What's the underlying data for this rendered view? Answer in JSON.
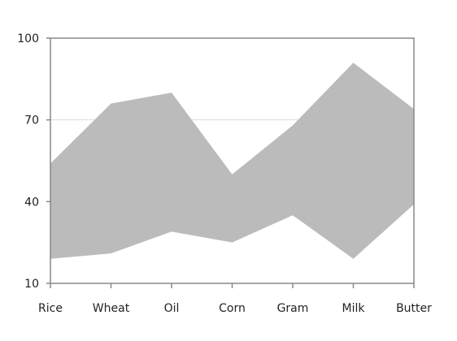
{
  "chart_data": {
    "type": "area",
    "subtype": "range-area",
    "categories": [
      "Rice",
      "Wheat",
      "Oil",
      "Corn",
      "Gram",
      "Milk",
      "Butter"
    ],
    "series": [
      {
        "low": [
          19,
          21,
          29,
          25,
          35,
          19,
          39
        ],
        "high": [
          54,
          76,
          80,
          50,
          68,
          91,
          74
        ],
        "color": "#bbbbbb"
      }
    ],
    "ylim": [
      10,
      100
    ],
    "y_ticks": [
      10,
      40,
      70,
      100
    ],
    "gridlines": [
      70
    ],
    "grid": true,
    "legend": "none",
    "colors": {
      "axis": "#888888",
      "grid": "#dddddd",
      "fill": "#bbbbbb",
      "text": "#222222"
    }
  }
}
